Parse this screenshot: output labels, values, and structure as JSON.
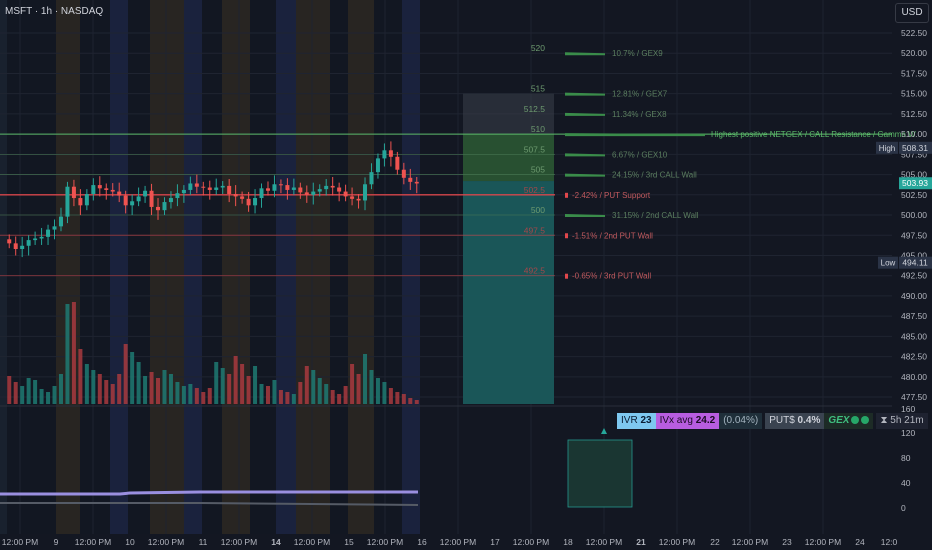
{
  "header": {
    "symbol_info": "MSFT · 1h · NASDAQ",
    "currency_button": "USD"
  },
  "colors": {
    "background": "#131722",
    "up_candle": "#26a69a",
    "down_candle": "#ef5350",
    "gex_green": "#4caf50",
    "put_red": "#e0474c",
    "box_teal": "#26a69a",
    "high_label": "#2a3346",
    "current_price_label": "#26a69a"
  },
  "price_axis": {
    "ticks": [
      "522.50",
      "520.00",
      "517.50",
      "515.00",
      "512.50",
      "510.00",
      "507.50",
      "505.00",
      "502.50",
      "500.00",
      "497.50",
      "495.00",
      "492.50",
      "490.00",
      "487.50",
      "485.00",
      "482.50",
      "480.00",
      "477.50"
    ],
    "high_label": "High",
    "high_value": "508.31",
    "current_value": "503.93",
    "low_label": "Low",
    "low_value": "494.11"
  },
  "indicator_axis": {
    "ticks": [
      "160",
      "120",
      "80",
      "40",
      "0"
    ]
  },
  "time_axis": {
    "ticks": [
      "12:00 PM",
      "9",
      "12:00 PM",
      "10",
      "12:00 PM",
      "11",
      "12:00 PM",
      "14",
      "12:00 PM",
      "15",
      "12:00 PM",
      "16",
      "12:00 PM",
      "17",
      "12:00 PM",
      "18",
      "12:00 PM",
      "21",
      "12:00 PM",
      "22",
      "12:00 PM",
      "23",
      "12:00 PM",
      "24",
      "12:0"
    ],
    "bold_ticks": [
      "14",
      "21"
    ]
  },
  "levels": [
    {
      "price": "520",
      "label": "10.7% / GEX9",
      "kind": "gex",
      "value": 520
    },
    {
      "price": "515",
      "label": "12.81% / GEX7",
      "kind": "gex",
      "value": 515
    },
    {
      "price": "512.5",
      "label": "11.34% / GEX8",
      "kind": "gex",
      "value": 512.5
    },
    {
      "price": "510",
      "label": "Highest positive NETGEX / CALL Resistance / Gamma W",
      "kind": "gex-major",
      "value": 510
    },
    {
      "price": "507.5",
      "label": "6.67% / GEX10",
      "kind": "gex",
      "value": 507.5
    },
    {
      "price": "505",
      "label": "24.15% / 3rd CALL Wall",
      "kind": "gex",
      "value": 505
    },
    {
      "price": "502.5",
      "label": "-2.42% / PUT Support",
      "kind": "put",
      "value": 502.5
    },
    {
      "price": "500",
      "label": "31.15% / 2nd CALL Wall",
      "kind": "gex",
      "value": 500
    },
    {
      "price": "497.5",
      "label": "-1.51% / 2nd PUT Wall",
      "kind": "put",
      "value": 497.5
    },
    {
      "price": "492.5",
      "label": "-0.65% / 3rd PUT Wall",
      "kind": "put",
      "value": 492.5
    }
  ],
  "indicator_bar": {
    "ivr_label": "IVR",
    "ivr_value": "23",
    "ivx_label": "IVx avg",
    "ivx_value": "24.2",
    "change": "(0.04%)",
    "put_label": "PUT$",
    "put_value": "0.4%",
    "gex_label": "GEX",
    "time_remaining": "5h 21m"
  },
  "chart_data": {
    "type": "candlestick",
    "ylim": [
      476.8,
      524.2
    ],
    "sessions": [
      "Jul 8",
      "Jul 9",
      "Jul 10",
      "Jul 11",
      "Jul 14",
      "Jul 15",
      "Jul 16"
    ],
    "candles_approx_close": [
      496.5,
      495.8,
      496.2,
      496.9,
      497.1,
      497.3,
      498.2,
      498.6,
      499.8,
      503.5,
      502.1,
      501.2,
      502.6,
      503.7,
      503.3,
      503.1,
      502.9,
      502.4,
      501.2,
      501.7,
      502.3,
      503.0,
      501.0,
      500.6,
      501.6,
      502.1,
      502.7,
      503.1,
      503.9,
      503.5,
      503.4,
      503.1,
      503.4,
      503.6,
      502.6,
      502.3,
      502.0,
      501.2,
      502.1,
      503.3,
      503.0,
      503.8,
      503.7,
      503.1,
      503.4,
      502.8,
      502.5,
      502.9,
      503.2,
      503.6,
      503.4,
      502.9,
      502.3,
      502.0,
      501.8,
      503.8,
      505.3,
      507.0,
      508.0,
      507.2,
      505.6,
      504.6,
      504.1,
      503.9
    ],
    "current_price": 503.93,
    "session_high": 508.31,
    "session_low": 494.11
  }
}
